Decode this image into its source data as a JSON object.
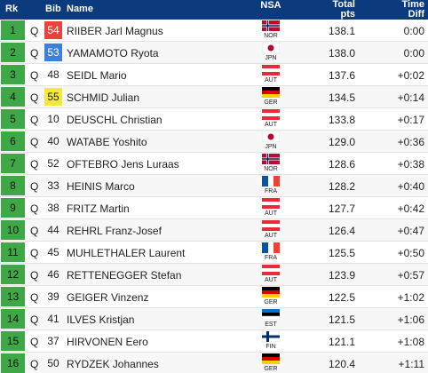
{
  "header": {
    "rank": "Rk",
    "bib": "Bib",
    "name": "Name",
    "nsa": "NSA",
    "total": "Total pts",
    "diff": "Time Diff"
  },
  "table": {
    "rows": [
      {
        "rank": "1",
        "q": "Q",
        "bib": "54",
        "bib_color": "#e8443c",
        "name": "RIIBER Jarl Magnus",
        "nsa": "NOR",
        "total": "138.1",
        "diff": "0:00"
      },
      {
        "rank": "2",
        "q": "Q",
        "bib": "53",
        "bib_color": "#3f7fdc",
        "name": "YAMAMOTO Ryota",
        "nsa": "JPN",
        "total": "138.0",
        "diff": "0:00"
      },
      {
        "rank": "3",
        "q": "Q",
        "bib": "48",
        "name": "SEIDL Mario",
        "nsa": "AUT",
        "total": "137.6",
        "diff": "+0:02"
      },
      {
        "rank": "4",
        "q": "Q",
        "bib": "55",
        "bib_color": "#f6e83a",
        "name": "SCHMID Julian",
        "nsa": "GER",
        "total": "134.5",
        "diff": "+0:14"
      },
      {
        "rank": "5",
        "q": "Q",
        "bib": "10",
        "name": "DEUSCHL Christian",
        "nsa": "AUT",
        "total": "133.8",
        "diff": "+0:17"
      },
      {
        "rank": "6",
        "q": "Q",
        "bib": "40",
        "name": "WATABE Yoshito",
        "nsa": "JPN",
        "total": "129.0",
        "diff": "+0:36"
      },
      {
        "rank": "7",
        "q": "Q",
        "bib": "52",
        "name": "OFTEBRO Jens Luraas",
        "nsa": "NOR",
        "total": "128.6",
        "diff": "+0:38"
      },
      {
        "rank": "8",
        "q": "Q",
        "bib": "33",
        "name": "HEINIS Marco",
        "nsa": "FRA",
        "total": "128.2",
        "diff": "+0:40"
      },
      {
        "rank": "9",
        "q": "Q",
        "bib": "38",
        "name": "FRITZ Martin",
        "nsa": "AUT",
        "total": "127.7",
        "diff": "+0:42"
      },
      {
        "rank": "10",
        "q": "Q",
        "bib": "44",
        "name": "REHRL Franz-Josef",
        "nsa": "AUT",
        "total": "126.4",
        "diff": "+0:47"
      },
      {
        "rank": "11",
        "q": "Q",
        "bib": "45",
        "name": "MUHLETHALER Laurent",
        "nsa": "FRA",
        "total": "125.5",
        "diff": "+0:50"
      },
      {
        "rank": "12",
        "q": "Q",
        "bib": "46",
        "name": "RETTENEGGER Stefan",
        "nsa": "AUT",
        "total": "123.9",
        "diff": "+0:57"
      },
      {
        "rank": "13",
        "q": "Q",
        "bib": "39",
        "name": "GEIGER Vinzenz",
        "nsa": "GER",
        "total": "122.5",
        "diff": "+1:02"
      },
      {
        "rank": "14",
        "q": "Q",
        "bib": "41",
        "name": "ILVES Kristjan",
        "nsa": "EST",
        "total": "121.5",
        "diff": "+1:06"
      },
      {
        "rank": "15",
        "q": "Q",
        "bib": "37",
        "name": "HIRVONEN Eero",
        "nsa": "FIN",
        "total": "121.1",
        "diff": "+1:08"
      },
      {
        "rank": "16",
        "q": "Q",
        "bib": "50",
        "name": "RYDZEK Johannes",
        "nsa": "GER",
        "total": "120.4",
        "diff": "+1:11"
      }
    ]
  }
}
